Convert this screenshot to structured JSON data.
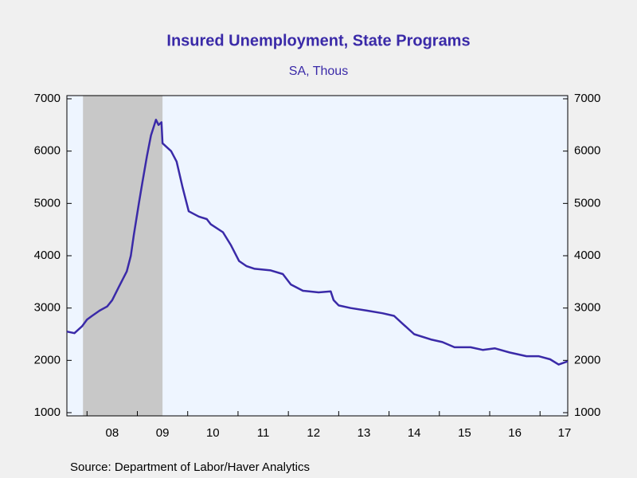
{
  "chart_data": {
    "type": "line",
    "title": "Insured Unemployment, State Programs",
    "subtitle": "SA, Thous",
    "source": "Source:  Department of Labor/Haver Analytics",
    "xlim": [
      2007.6,
      2017.55
    ],
    "xticks": [
      {
        "value": 2008,
        "label": "08"
      },
      {
        "value": 2009,
        "label": "09"
      },
      {
        "value": 2010,
        "label": "10"
      },
      {
        "value": 2011,
        "label": "11"
      },
      {
        "value": 2012,
        "label": "12"
      },
      {
        "value": 2013,
        "label": "13"
      },
      {
        "value": 2014,
        "label": "14"
      },
      {
        "value": 2015,
        "label": "15"
      },
      {
        "value": 2016,
        "label": "16"
      },
      {
        "value": 2017,
        "label": "17"
      }
    ],
    "ylim": [
      1000,
      7000
    ],
    "yticks": [
      1000,
      2000,
      3000,
      4000,
      5000,
      6000,
      7000
    ],
    "recession": [
      2007.92,
      2009.5
    ],
    "series": [
      {
        "color": "#3a2aa8",
        "x": [
          2007.6,
          2007.75,
          2007.9,
          2008.0,
          2008.1,
          2008.25,
          2008.4,
          2008.5,
          2008.63,
          2008.79,
          2008.87,
          2008.93,
          2009.03,
          2009.1,
          2009.19,
          2009.27,
          2009.37,
          2009.42,
          2009.48,
          2009.5,
          2009.67,
          2009.78,
          2009.9,
          2010.02,
          2010.22,
          2010.38,
          2010.46,
          2010.7,
          2010.86,
          2011.02,
          2011.17,
          2011.33,
          2011.65,
          2011.89,
          2012.05,
          2012.29,
          2012.6,
          2012.84,
          2012.9,
          2013.0,
          2013.24,
          2013.56,
          2013.87,
          2014.1,
          2014.27,
          2014.5,
          2014.83,
          2015.06,
          2015.3,
          2015.62,
          2015.86,
          2016.1,
          2016.4,
          2016.73,
          2016.97,
          2017.2,
          2017.37,
          2017.55
        ],
        "values": [
          2550,
          2520,
          2650,
          2780,
          2850,
          2950,
          3030,
          3150,
          3400,
          3700,
          4000,
          4400,
          5000,
          5400,
          5900,
          6300,
          6600,
          6500,
          6550,
          6150,
          6000,
          5800,
          5300,
          4850,
          4750,
          4700,
          4600,
          4450,
          4200,
          3900,
          3800,
          3750,
          3720,
          3650,
          3450,
          3330,
          3300,
          3320,
          3150,
          3050,
          3000,
          2950,
          2900,
          2850,
          2700,
          2500,
          2400,
          2350,
          2250,
          2250,
          2200,
          2230,
          2150,
          2080,
          2080,
          2020,
          1920,
          1980
        ]
      }
    ]
  }
}
